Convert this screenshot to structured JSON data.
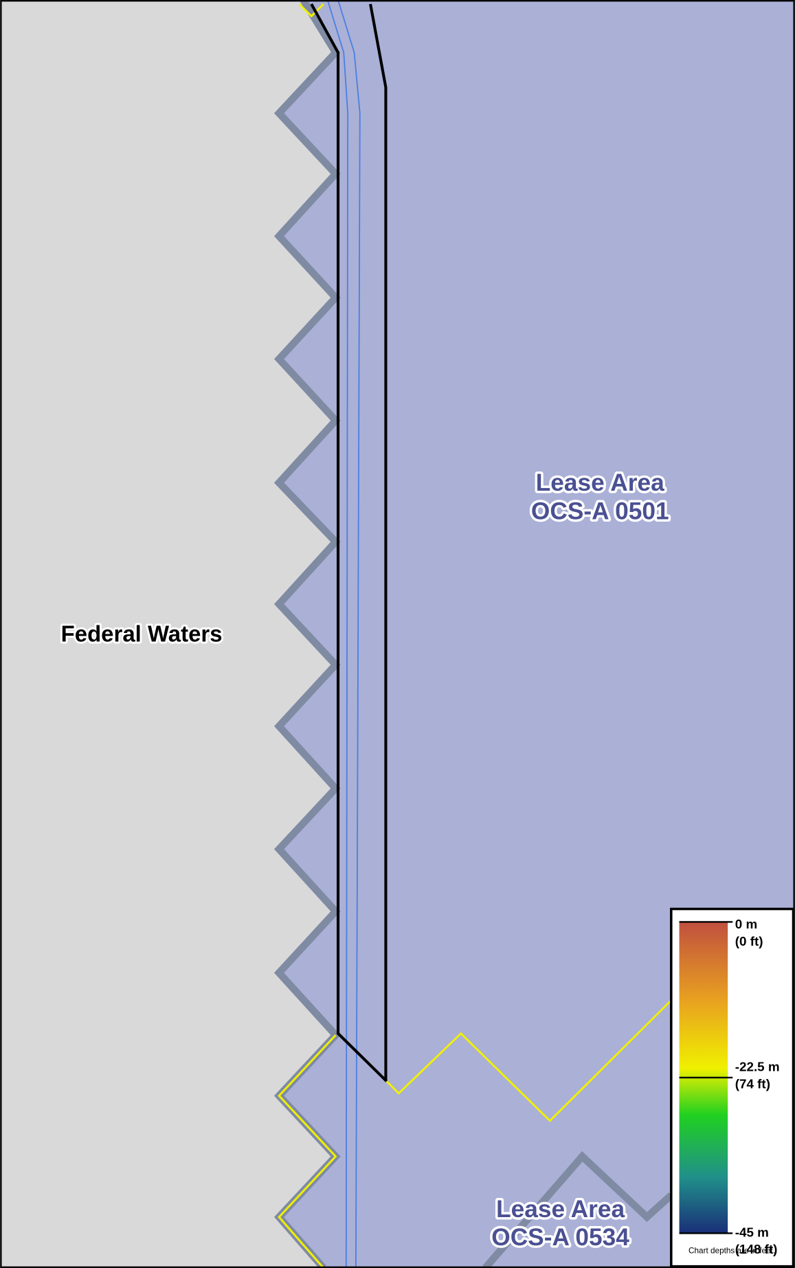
{
  "map": {
    "labels": {
      "federal_waters": "Federal Waters",
      "lease_0501": [
        "Lease Area",
        "OCS-A 0501"
      ],
      "lease_0534": [
        "Lease Area",
        "OCS-A 0534"
      ]
    },
    "legend": {
      "ticks": [
        {
          "m": "0 m",
          "ft": "(0 ft)"
        },
        {
          "m": "-22.5 m",
          "ft": "(74 ft)"
        },
        {
          "m": "-45 m",
          "ft": "(148 ft)"
        }
      ],
      "note": "Chart depths are in feet."
    }
  }
}
